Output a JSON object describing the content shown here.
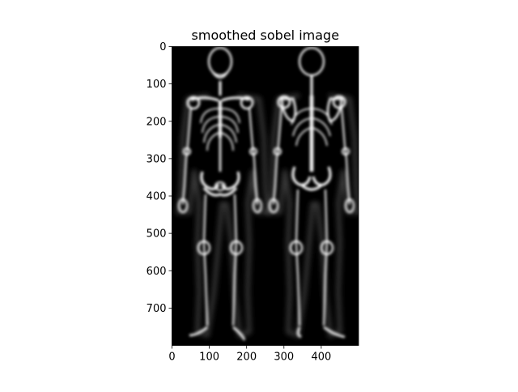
{
  "chart_data": {
    "type": "image",
    "title": "smoothed sobel image",
    "xlabel": "",
    "ylabel": "",
    "colormap": "gray",
    "background": "#000000",
    "foreground": "#e6e6e6",
    "xlim": [
      0,
      500
    ],
    "ylim": [
      800,
      0
    ],
    "x_ticks": [
      0,
      100,
      200,
      300,
      400
    ],
    "y_ticks": [
      0,
      100,
      200,
      300,
      400,
      500,
      600,
      700
    ],
    "x_tick_labels": [
      "0",
      "100",
      "200",
      "300",
      "400"
    ],
    "y_tick_labels": [
      "0",
      "100",
      "200",
      "300",
      "400",
      "500",
      "600",
      "700"
    ],
    "grid": false,
    "subject": "whole-body bone scan, anterior and posterior skeleton views"
  }
}
